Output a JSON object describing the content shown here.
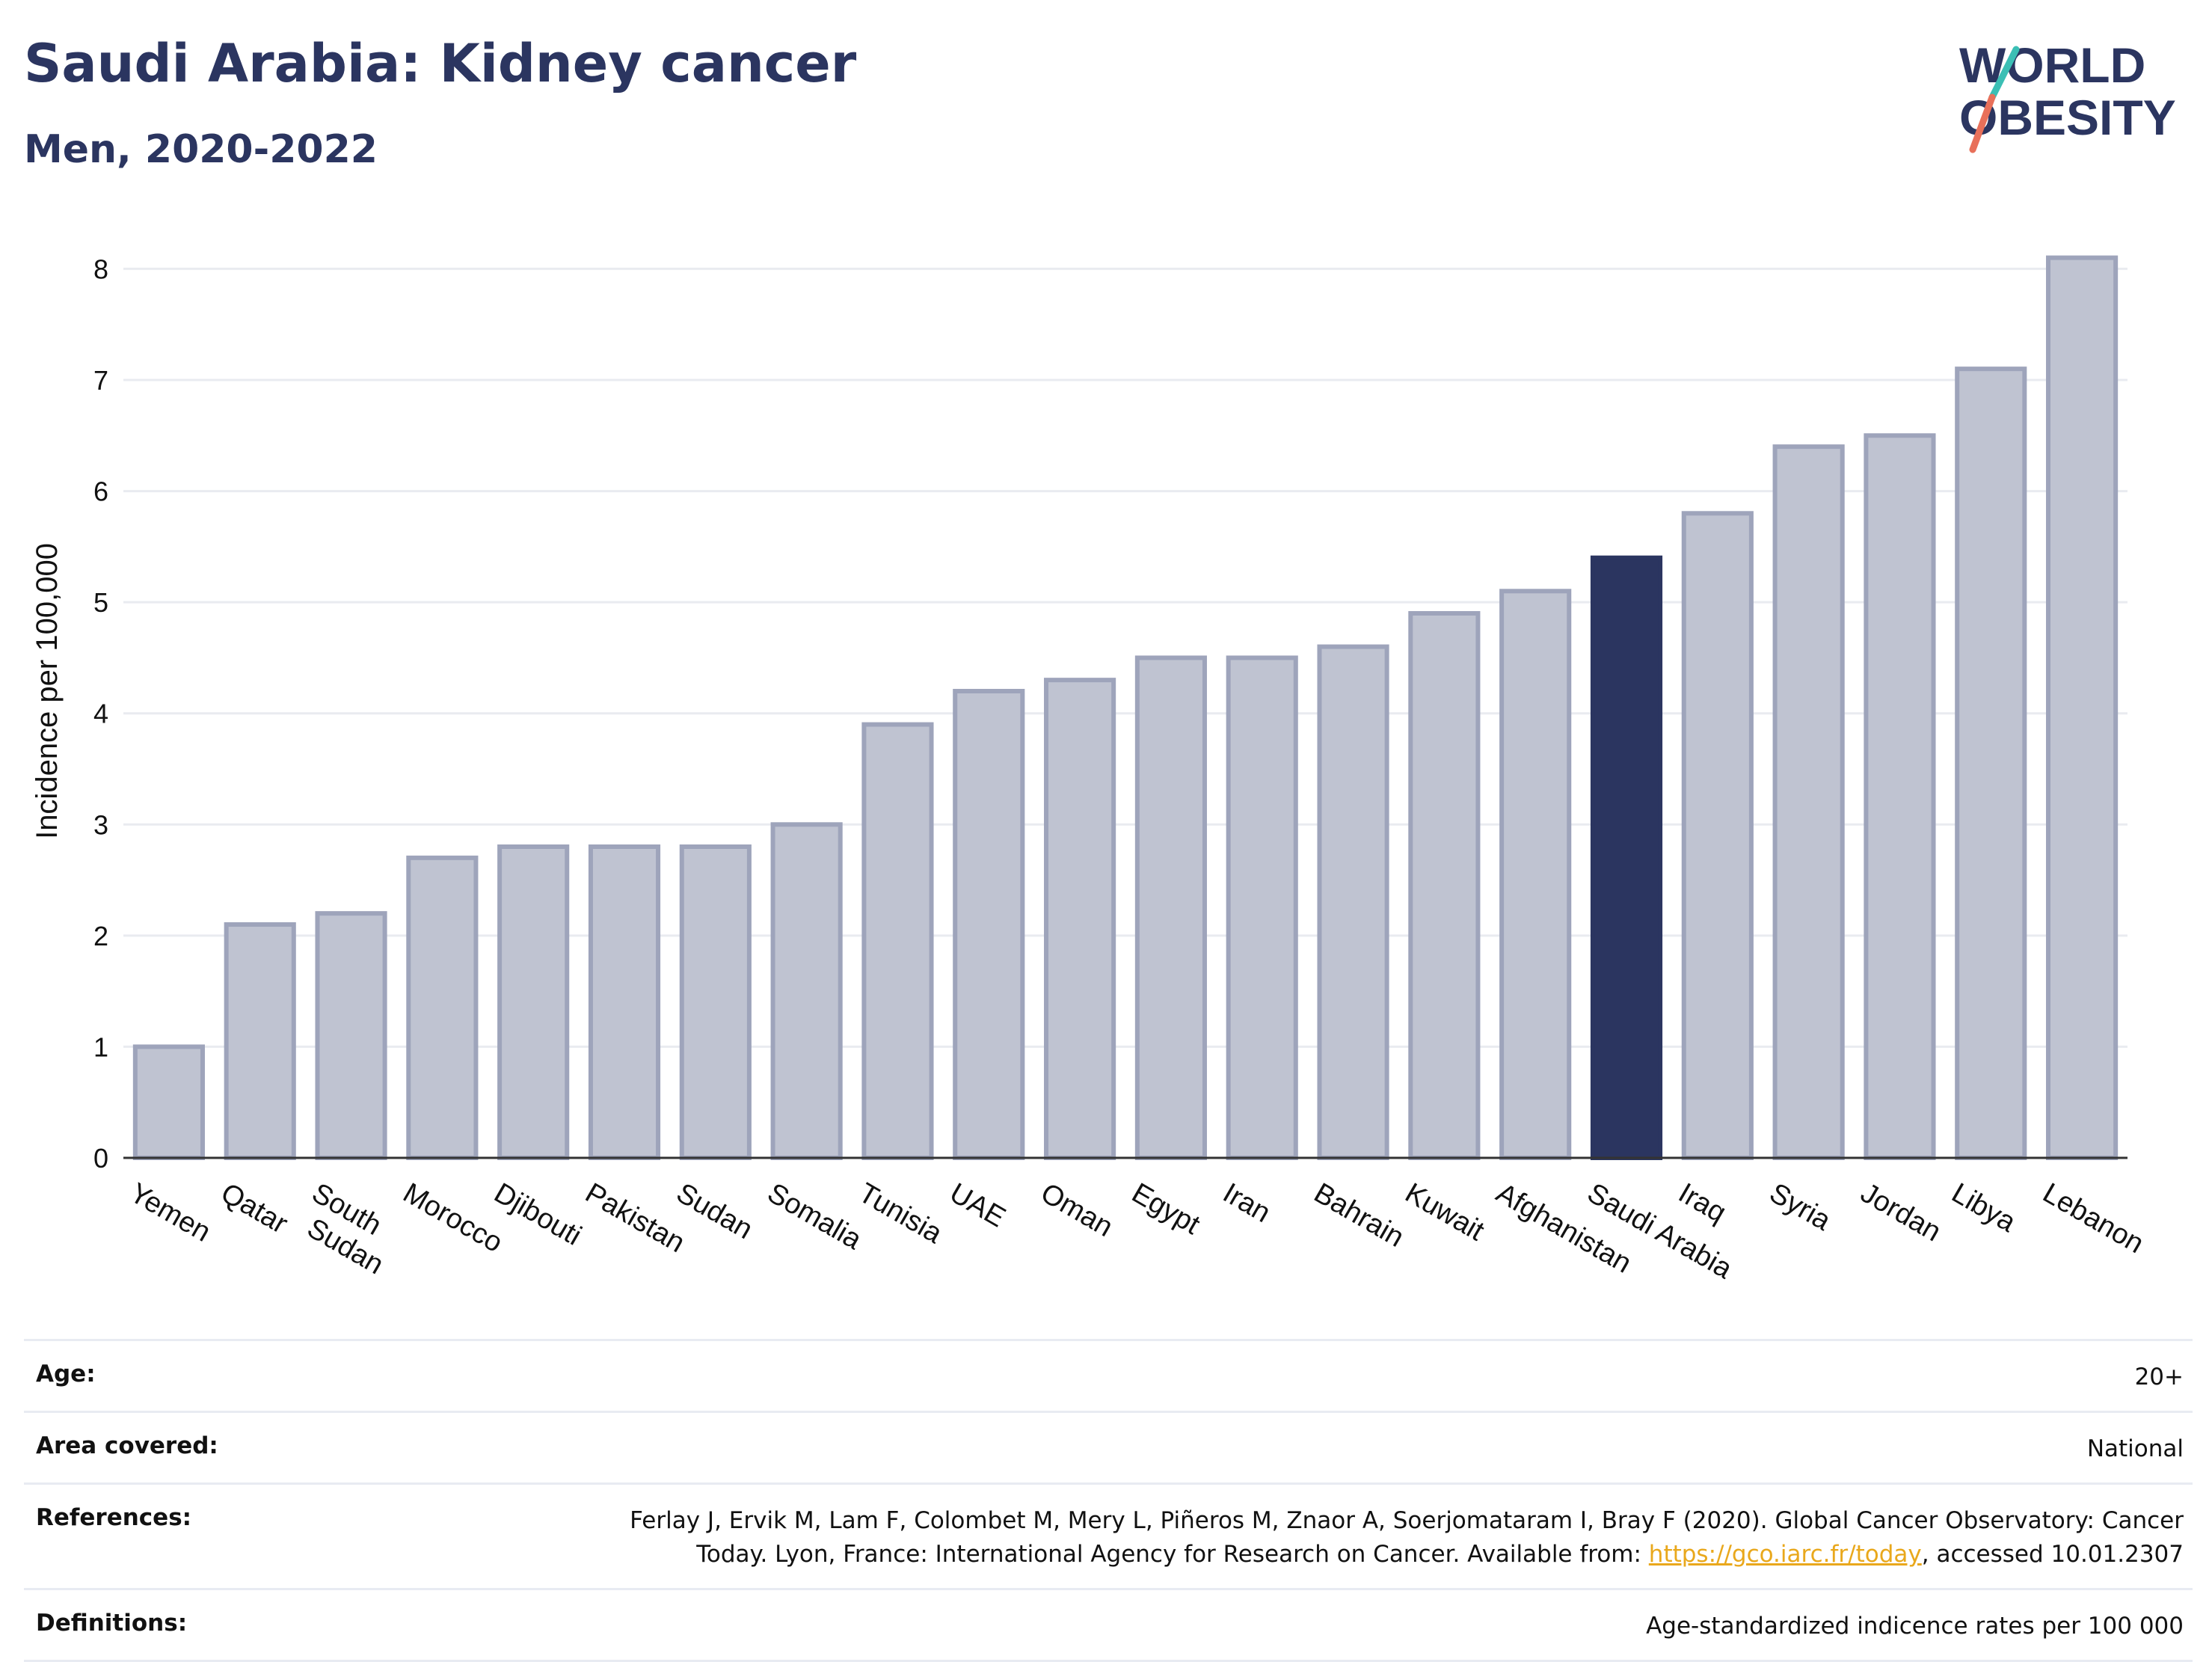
{
  "header": {
    "title": "Saudi Arabia: Kidney cancer",
    "subtitle": "Men, 2020-2022"
  },
  "logo": {
    "line1": "WORLD",
    "line2": "OBESITY",
    "accent_colors": [
      "#3bbfb5",
      "#e8705a"
    ]
  },
  "chart_data": {
    "type": "bar",
    "categories": [
      "Yemen",
      "Qatar",
      "South Sudan",
      "Morocco",
      "Djibouti",
      "Pakistan",
      "Sudan",
      "Somalia",
      "Tunisia",
      "UAE",
      "Oman",
      "Egypt",
      "Iran",
      "Bahrain",
      "Kuwait",
      "Afghanistan",
      "Saudi Arabia",
      "Iraq",
      "Syria",
      "Jordan",
      "Libya",
      "Lebanon"
    ],
    "values": [
      1.0,
      2.1,
      2.2,
      2.7,
      2.8,
      2.8,
      2.8,
      3.0,
      3.9,
      4.2,
      4.3,
      4.5,
      4.5,
      4.6,
      4.9,
      5.1,
      5.4,
      5.8,
      6.4,
      6.5,
      7.1,
      8.1
    ],
    "highlight": "Saudi Arabia",
    "ylabel": "Incidence per 100,000",
    "xlabel": "",
    "ylim": [
      0,
      8.4
    ],
    "yticks": [
      0,
      1,
      2,
      3,
      4,
      5,
      6,
      7,
      8
    ],
    "grid": true,
    "colors": {
      "bar_fill": "#bfc3d1",
      "bar_stroke": "#9ea4bb",
      "highlight_fill": "#2b3560",
      "grid": "#e9ebf0"
    }
  },
  "info": {
    "age": {
      "label": "Age:",
      "value": "20+"
    },
    "area": {
      "label": "Area covered:",
      "value": "National"
    },
    "references": {
      "label": "References:",
      "line1": "Ferlay J, Ervik M, Lam F, Colombet M, Mery L, Piñeros M, Znaor A, Soerjomataram I, Bray F (2020). Global Cancer Observatory: Cancer",
      "line2_prefix": "Today. Lyon, France: International Agency for Research on Cancer. Available from: ",
      "link": "https://gco.iarc.fr/today",
      "line2_suffix": ", accessed 10.01.2307"
    },
    "definitions": {
      "label": "Definitions:",
      "value": "Age-standardized indicence rates per 100 000"
    }
  }
}
